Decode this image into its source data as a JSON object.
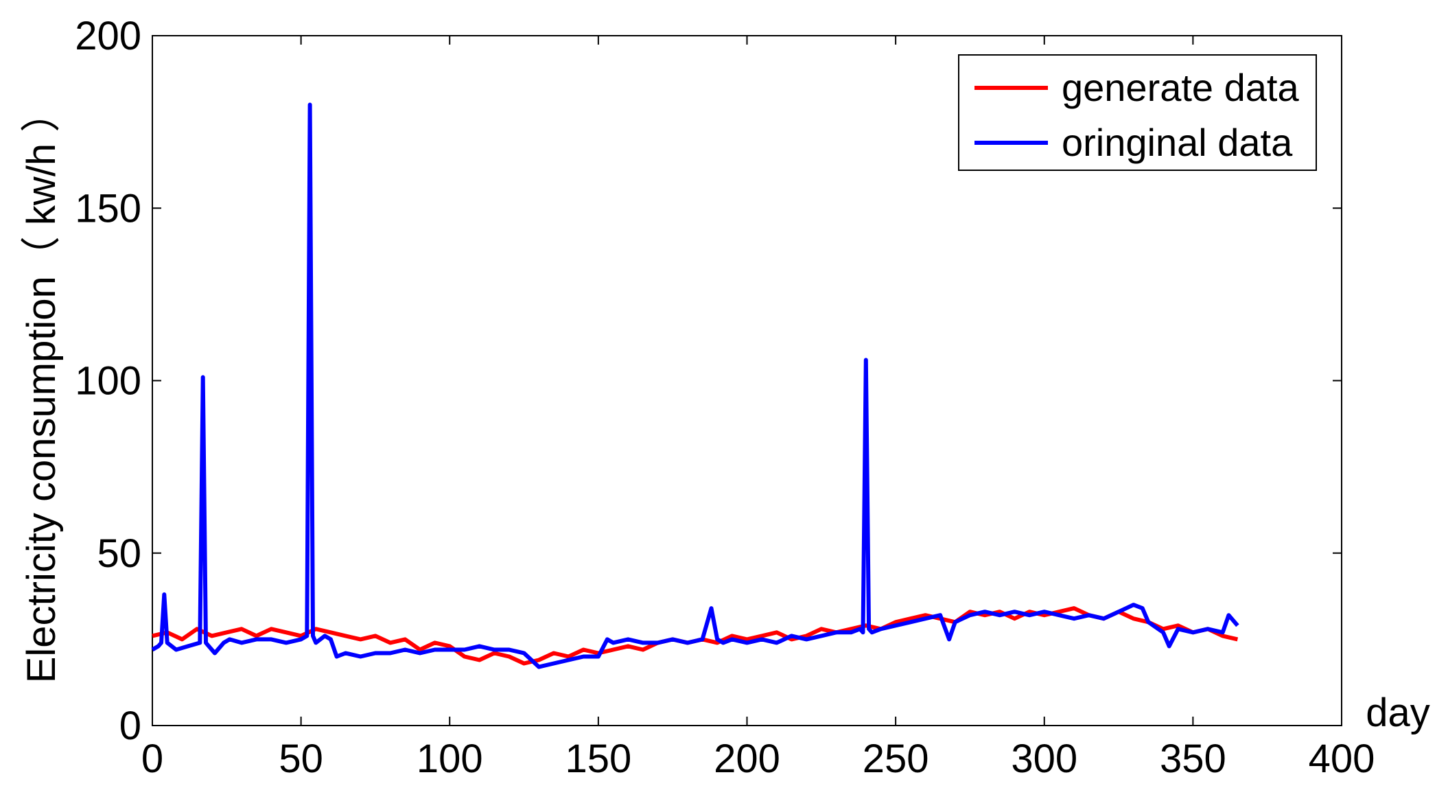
{
  "chart_data": {
    "type": "line",
    "xlabel": "day",
    "ylabel": "Electricity consumption（ kw/h ）",
    "xlim": [
      0,
      400
    ],
    "ylim": [
      0,
      200
    ],
    "x_ticks": [
      "0",
      "50",
      "100",
      "150",
      "200",
      "250",
      "300",
      "350",
      "400"
    ],
    "y_ticks": [
      "0",
      "50",
      "100",
      "150",
      "200"
    ],
    "grid": false,
    "legend_position": "top-right",
    "series": [
      {
        "name": "generate data",
        "color": "#ff0000",
        "x": [
          0,
          5,
          10,
          15,
          20,
          25,
          30,
          35,
          40,
          45,
          50,
          55,
          60,
          65,
          70,
          75,
          80,
          85,
          90,
          95,
          100,
          105,
          110,
          115,
          120,
          125,
          130,
          135,
          140,
          145,
          150,
          155,
          160,
          165,
          170,
          175,
          180,
          185,
          190,
          195,
          200,
          205,
          210,
          215,
          220,
          225,
          230,
          235,
          240,
          245,
          250,
          255,
          260,
          265,
          270,
          275,
          280,
          285,
          290,
          295,
          300,
          305,
          310,
          315,
          320,
          325,
          330,
          335,
          340,
          345,
          350,
          355,
          360,
          365
        ],
        "values": [
          26,
          27,
          25,
          28,
          26,
          27,
          28,
          26,
          28,
          27,
          26,
          28,
          27,
          26,
          25,
          26,
          24,
          25,
          22,
          24,
          23,
          20,
          19,
          21,
          20,
          18,
          19,
          21,
          20,
          22,
          21,
          22,
          23,
          22,
          24,
          25,
          24,
          25,
          24,
          26,
          25,
          26,
          27,
          25,
          26,
          28,
          27,
          28,
          29,
          28,
          30,
          31,
          32,
          31,
          30,
          33,
          32,
          33,
          31,
          33,
          32,
          33,
          34,
          32,
          31,
          33,
          31,
          30,
          28,
          29,
          27,
          28,
          26,
          25
        ]
      },
      {
        "name": "oringinal data",
        "color": "#0000ff",
        "x": [
          0,
          2,
          3,
          4,
          5,
          8,
          12,
          16,
          17,
          18,
          19,
          21,
          24,
          26,
          30,
          35,
          40,
          45,
          50,
          52,
          53,
          54,
          55,
          58,
          60,
          62,
          65,
          70,
          75,
          80,
          85,
          90,
          95,
          100,
          105,
          110,
          115,
          120,
          125,
          130,
          135,
          140,
          145,
          150,
          153,
          155,
          160,
          165,
          170,
          175,
          180,
          185,
          188,
          190,
          192,
          195,
          200,
          205,
          210,
          215,
          220,
          225,
          230,
          235,
          238,
          239,
          240,
          241,
          242,
          245,
          250,
          255,
          260,
          265,
          268,
          270,
          275,
          280,
          285,
          290,
          295,
          300,
          305,
          310,
          315,
          320,
          325,
          330,
          333,
          335,
          340,
          342,
          345,
          350,
          355,
          360,
          362,
          365
        ],
        "values": [
          22,
          23,
          24,
          38,
          24,
          22,
          23,
          24,
          101,
          24,
          23,
          21,
          24,
          25,
          24,
          25,
          25,
          24,
          25,
          26,
          180,
          26,
          24,
          26,
          25,
          20,
          21,
          20,
          21,
          21,
          22,
          21,
          22,
          22,
          22,
          23,
          22,
          22,
          21,
          17,
          18,
          19,
          20,
          20,
          25,
          24,
          25,
          24,
          24,
          25,
          24,
          25,
          34,
          25,
          24,
          25,
          24,
          25,
          24,
          26,
          25,
          26,
          27,
          27,
          28,
          27,
          106,
          28,
          27,
          28,
          29,
          30,
          31,
          32,
          25,
          30,
          32,
          33,
          32,
          33,
          32,
          33,
          32,
          31,
          32,
          31,
          33,
          35,
          34,
          30,
          27,
          23,
          28,
          27,
          28,
          27,
          32,
          29
        ]
      }
    ]
  }
}
